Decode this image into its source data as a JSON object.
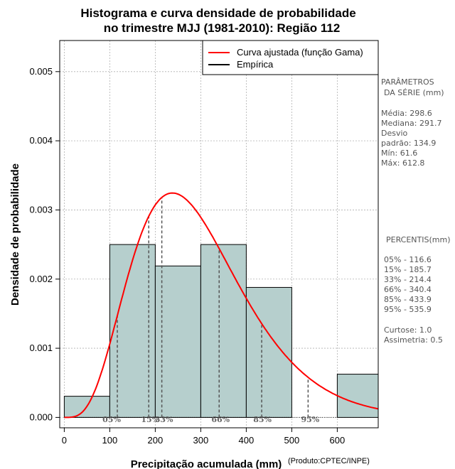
{
  "chart_data": {
    "type": "bar",
    "title_line1": "Histograma e curva densidade de probabilidade",
    "title_line2": "no trimestre MJJ (1981-2010): Região 112",
    "xlabel": "Precipitação acumulada (mm)",
    "ylabel": "Densidade de probabilidade",
    "credit": "(Produto:CPTEC/INPE)",
    "xlim": [
      -10,
      690
    ],
    "ylim": [
      -0.00015,
      0.00545
    ],
    "xticks": [
      0,
      100,
      200,
      300,
      400,
      500,
      600
    ],
    "yticks": [
      "0.000",
      "0.001",
      "0.002",
      "0.003",
      "0.004",
      "0.005"
    ],
    "bins": [
      {
        "start": 0,
        "end": 100,
        "value": 0.000306
      },
      {
        "start": 100,
        "end": 200,
        "value": 0.0025
      },
      {
        "start": 200,
        "end": 300,
        "value": 0.00219
      },
      {
        "start": 300,
        "end": 400,
        "value": 0.0025
      },
      {
        "start": 400,
        "end": 500,
        "value": 0.00188
      },
      {
        "start": 500,
        "end": 600,
        "value": 0.0
      },
      {
        "start": 600,
        "end": 700,
        "value": 0.000625
      }
    ],
    "gamma_fit": {
      "mean": 298.6,
      "sd": 134.9
    },
    "legend": [
      "Curva ajustada (função Gama)",
      "Empírica"
    ],
    "percentiles": [
      {
        "label": "05%",
        "value": 116.6
      },
      {
        "label": "15%",
        "value": 185.7
      },
      {
        "label": "33%",
        "value": 214.4
      },
      {
        "label": "66%",
        "value": 340.4
      },
      {
        "label": "85%",
        "value": 433.9
      },
      {
        "label": "95%",
        "value": 535.9
      }
    ],
    "colors": {
      "bar": "#b6cfcd",
      "curve": "#ff0000",
      "grid": "#b0b0b0",
      "percentile": "#555555"
    }
  },
  "stats": {
    "header_line1": "PARÂMETROS",
    "header_line2": "DA SÉRIE (mm)",
    "lines": [
      "Média:  298.6",
      "Mediana:  291.7",
      "Desvio",
      "padrão:  134.9",
      "Mín:  61.6",
      "Máx:  612.8"
    ]
  },
  "percentis": {
    "header": "PERCENTIS(mm)",
    "lines": [
      "05% -  116.6",
      "15% -  185.7",
      "33% -  214.4",
      "66% -  340.4",
      "85% -  433.9",
      "95% -  535.9"
    ],
    "extra": [
      "Curtose:  1.0",
      "Assimetria:  0.5"
    ]
  }
}
